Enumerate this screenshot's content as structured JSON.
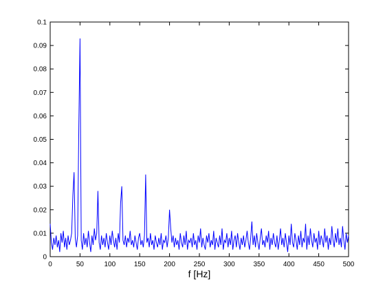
{
  "chart_data": {
    "type": "line",
    "xlabel": "f [Hz]",
    "xlim": [
      0,
      500
    ],
    "xticks": [
      0,
      50,
      100,
      150,
      200,
      250,
      300,
      350,
      400,
      450,
      500
    ],
    "ylim": [
      0,
      0.1
    ],
    "yticks": [
      0,
      0.01,
      0.02,
      0.03,
      0.04,
      0.05,
      0.06,
      0.07,
      0.08,
      0.09,
      0.1
    ],
    "x": [
      0,
      2,
      4,
      6,
      8,
      10,
      12,
      14,
      16,
      18,
      20,
      22,
      24,
      26,
      28,
      30,
      32,
      34,
      36,
      38,
      40,
      42,
      44,
      46,
      48,
      50,
      52,
      54,
      56,
      58,
      60,
      62,
      64,
      66,
      68,
      70,
      72,
      74,
      76,
      78,
      80,
      82,
      84,
      86,
      88,
      90,
      92,
      94,
      96,
      98,
      100,
      102,
      104,
      106,
      108,
      110,
      112,
      114,
      116,
      118,
      120,
      122,
      124,
      126,
      128,
      130,
      132,
      134,
      136,
      138,
      140,
      142,
      144,
      146,
      148,
      150,
      152,
      154,
      156,
      158,
      160,
      162,
      164,
      166,
      168,
      170,
      172,
      174,
      176,
      178,
      180,
      182,
      184,
      186,
      188,
      190,
      192,
      194,
      196,
      198,
      200,
      202,
      204,
      206,
      208,
      210,
      212,
      214,
      216,
      218,
      220,
      222,
      224,
      226,
      228,
      230,
      232,
      234,
      236,
      238,
      240,
      242,
      244,
      246,
      248,
      250,
      252,
      254,
      256,
      258,
      260,
      262,
      264,
      266,
      268,
      270,
      272,
      274,
      276,
      278,
      280,
      282,
      284,
      286,
      288,
      290,
      292,
      294,
      296,
      298,
      300,
      302,
      304,
      306,
      308,
      310,
      312,
      314,
      316,
      318,
      320,
      322,
      324,
      326,
      328,
      330,
      332,
      334,
      336,
      338,
      340,
      342,
      344,
      346,
      348,
      350,
      352,
      354,
      356,
      358,
      360,
      362,
      364,
      366,
      368,
      370,
      372,
      374,
      376,
      378,
      380,
      382,
      384,
      386,
      388,
      390,
      392,
      394,
      396,
      398,
      400,
      402,
      404,
      406,
      408,
      410,
      412,
      414,
      416,
      418,
      420,
      422,
      424,
      426,
      428,
      430,
      432,
      434,
      436,
      438,
      440,
      442,
      444,
      446,
      448,
      450,
      452,
      454,
      456,
      458,
      460,
      462,
      464,
      466,
      468,
      470,
      472,
      474,
      476,
      478,
      480,
      482,
      484,
      486,
      488,
      490,
      492,
      494,
      496,
      498,
      500
    ],
    "series": [
      {
        "color": "#0000ff",
        "values": [
          0.014,
          0.006,
          0.003,
          0.008,
          0.005,
          0.009,
          0.004,
          0.007,
          0.002,
          0.01,
          0.006,
          0.011,
          0.004,
          0.008,
          0.003,
          0.009,
          0.005,
          0.007,
          0.01,
          0.026,
          0.036,
          0.008,
          0.004,
          0.009,
          0.056,
          0.093,
          0.007,
          0.003,
          0.01,
          0.005,
          0.008,
          0.004,
          0.011,
          0.006,
          0.002,
          0.009,
          0.005,
          0.012,
          0.007,
          0.01,
          0.028,
          0.006,
          0.003,
          0.009,
          0.005,
          0.008,
          0.004,
          0.01,
          0.006,
          0.003,
          0.009,
          0.005,
          0.011,
          0.007,
          0.004,
          0.008,
          0.003,
          0.01,
          0.006,
          0.023,
          0.03,
          0.007,
          0.005,
          0.009,
          0.004,
          0.008,
          0.006,
          0.011,
          0.005,
          0.007,
          0.004,
          0.009,
          0.006,
          0.003,
          0.008,
          0.01,
          0.005,
          0.007,
          0.004,
          0.009,
          0.035,
          0.006,
          0.008,
          0.004,
          0.01,
          0.005,
          0.007,
          0.003,
          0.009,
          0.006,
          0.004,
          0.008,
          0.005,
          0.01,
          0.003,
          0.007,
          0.006,
          0.009,
          0.004,
          0.008,
          0.02,
          0.012,
          0.006,
          0.009,
          0.004,
          0.008,
          0.005,
          0.007,
          0.003,
          0.01,
          0.006,
          0.004,
          0.009,
          0.005,
          0.011,
          0.003,
          0.007,
          0.006,
          0.008,
          0.004,
          0.01,
          0.005,
          0.007,
          0.003,
          0.009,
          0.006,
          0.012,
          0.004,
          0.008,
          0.005,
          0.003,
          0.009,
          0.006,
          0.01,
          0.004,
          0.007,
          0.005,
          0.011,
          0.003,
          0.008,
          0.006,
          0.004,
          0.009,
          0.005,
          0.012,
          0.003,
          0.007,
          0.006,
          0.01,
          0.004,
          0.008,
          0.005,
          0.011,
          0.003,
          0.007,
          0.009,
          0.004,
          0.01,
          0.006,
          0.003,
          0.008,
          0.005,
          0.009,
          0.004,
          0.007,
          0.011,
          0.006,
          0.003,
          0.008,
          0.015,
          0.005,
          0.009,
          0.004,
          0.01,
          0.006,
          0.003,
          0.008,
          0.012,
          0.005,
          0.007,
          0.004,
          0.009,
          0.006,
          0.011,
          0.003,
          0.008,
          0.005,
          0.01,
          0.006,
          0.004,
          0.009,
          0.003,
          0.007,
          0.012,
          0.005,
          0.008,
          0.004,
          0.01,
          0.006,
          0.002,
          0.009,
          0.005,
          0.014,
          0.006,
          0.004,
          0.01,
          0.007,
          0.003,
          0.009,
          0.005,
          0.011,
          0.004,
          0.008,
          0.006,
          0.014,
          0.003,
          0.009,
          0.005,
          0.012,
          0.007,
          0.004,
          0.01,
          0.006,
          0.008,
          0.003,
          0.011,
          0.005,
          0.009,
          0.007,
          0.004,
          0.012,
          0.006,
          0.009,
          0.003,
          0.008,
          0.005,
          0.013,
          0.007,
          0.004,
          0.01,
          0.006,
          0.012,
          0.005,
          0.008,
          0.004,
          0.013,
          0.007,
          0.003,
          0.01,
          0.006,
          0.009
        ]
      }
    ]
  }
}
